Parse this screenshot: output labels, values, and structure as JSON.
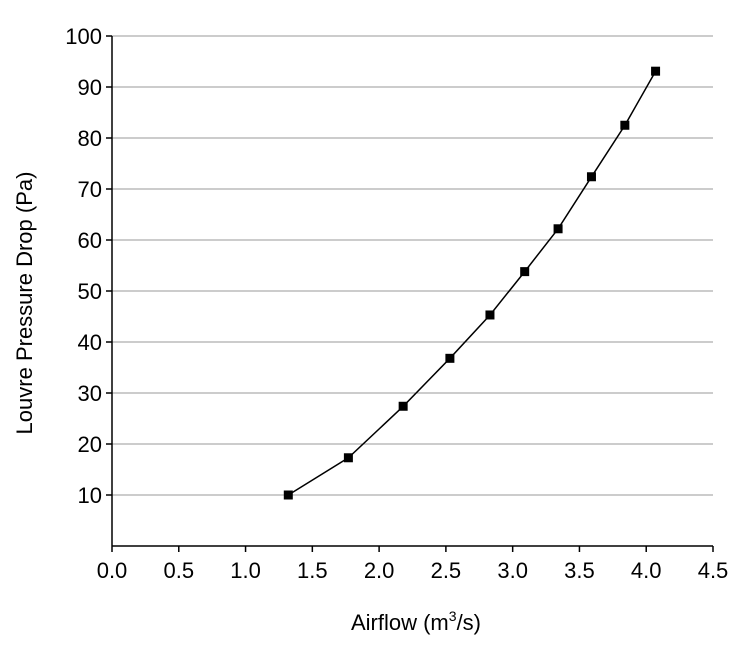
{
  "chart_data": {
    "type": "line",
    "title": "",
    "xlabel": "Airflow (m",
    "xlabel_sup": "3",
    "xlabel_suffix": "/s)",
    "ylabel": "Louvre Pressure Drop (Pa)",
    "xlim": [
      0.0,
      4.5
    ],
    "ylim": [
      0,
      100
    ],
    "x_ticks": [
      "0.0",
      "0.5",
      "1.0",
      "1.5",
      "2.0",
      "2.5",
      "3.0",
      "3.5",
      "4.0",
      "4.5"
    ],
    "y_ticks": [
      "10",
      "20",
      "30",
      "40",
      "50",
      "60",
      "70",
      "80",
      "90",
      "100"
    ],
    "grid": "horizontal",
    "legend": "none",
    "series": [
      {
        "marker": "square",
        "color": "#000000",
        "x": [
          1.32,
          1.77,
          2.18,
          2.53,
          2.83,
          3.09,
          3.34,
          3.59,
          3.84,
          4.07
        ],
        "y": [
          10,
          17.3,
          27.4,
          36.8,
          45.3,
          53.8,
          62.2,
          72.4,
          82.5,
          93.1
        ]
      }
    ]
  }
}
